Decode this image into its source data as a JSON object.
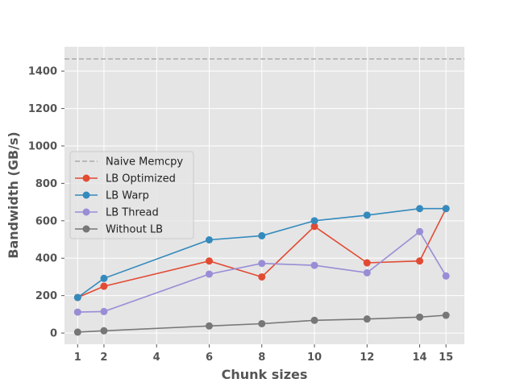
{
  "chart_data": {
    "type": "line",
    "title": "",
    "xlabel": "Chunk sizes",
    "ylabel": "Bandwidth (GB/s)",
    "xlim": [
      0.5,
      15.7
    ],
    "ylim": [
      -60,
      1530
    ],
    "xticks": [
      1,
      2,
      4,
      6,
      8,
      10,
      12,
      14,
      15
    ],
    "yticks": [
      0,
      200,
      400,
      600,
      800,
      1000,
      1200,
      1400
    ],
    "grid": true,
    "legend_position": "center-left",
    "reference_line": {
      "name": "Naive Memcpy",
      "y": 1465,
      "color": "#aaaaaa",
      "style": "dashed"
    },
    "series": [
      {
        "name": "LB Optimized",
        "color": "#e24a33",
        "x": [
          1,
          2,
          6,
          8,
          10,
          12,
          14,
          15
        ],
        "y": [
          190,
          250,
          385,
          300,
          570,
          375,
          385,
          665
        ]
      },
      {
        "name": "LB Warp",
        "color": "#348abd",
        "x": [
          1,
          2,
          6,
          8,
          10,
          12,
          14,
          15
        ],
        "y": [
          190,
          292,
          498,
          520,
          600,
          630,
          665,
          665
        ]
      },
      {
        "name": "LB Thread",
        "color": "#988ed5",
        "x": [
          1,
          2,
          6,
          8,
          10,
          12,
          14,
          15
        ],
        "y": [
          112,
          115,
          315,
          372,
          362,
          322,
          542,
          305
        ]
      },
      {
        "name": "Without LB",
        "color": "#777777",
        "x": [
          1,
          2,
          6,
          8,
          10,
          12,
          14,
          15
        ],
        "y": [
          5,
          12,
          38,
          50,
          68,
          75,
          85,
          95
        ]
      }
    ]
  }
}
